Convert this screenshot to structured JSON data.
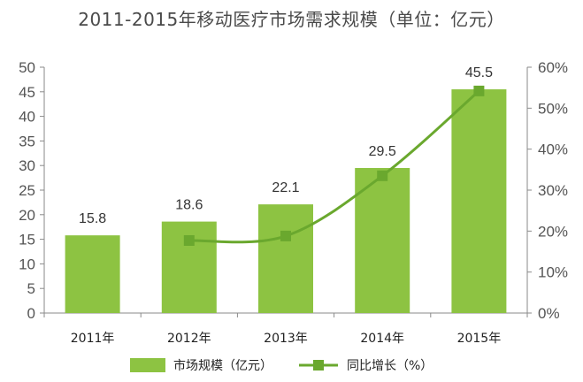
{
  "chart_data": {
    "type": "bar",
    "title": "2011-2015年移动医疗市场需求规模（单位：亿元）",
    "categories": [
      "2011年",
      "2012年",
      "2013年",
      "2014年",
      "2015年"
    ],
    "series": [
      {
        "name": "市场规模（亿元）",
        "type": "bar",
        "axis": "left",
        "color": "#8dc342",
        "values": [
          15.8,
          18.6,
          22.1,
          29.5,
          45.5
        ],
        "labels": [
          "15.8",
          "18.6",
          "22.1",
          "29.5",
          "45.5"
        ]
      },
      {
        "name": "同比增长（%）",
        "type": "line",
        "axis": "right",
        "color": "#6aa82e",
        "marker": "square",
        "smooth": true,
        "values": [
          null,
          17.7,
          18.8,
          33.5,
          54.2
        ]
      }
    ],
    "ylim": [
      0,
      50
    ],
    "yticks": [
      "0",
      "5",
      "10",
      "15",
      "20",
      "25",
      "30",
      "35",
      "40",
      "45",
      "50"
    ],
    "y2lim": [
      0,
      60
    ],
    "y2ticks": [
      "0%",
      "10%",
      "20%",
      "30%",
      "40%",
      "50%",
      "60%"
    ],
    "grid": false,
    "legend": "bottom"
  }
}
